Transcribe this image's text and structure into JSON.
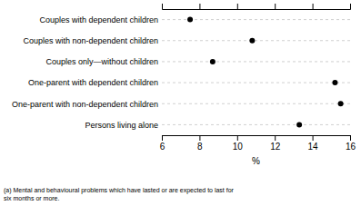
{
  "chart_data": {
    "type": "dot",
    "orientation": "horizontal",
    "categories": [
      "Couples with dependent children",
      "Couples with non-dependent children",
      "Couples only—without children",
      "One-parent with dependent children",
      "One-parent with non-dependent children",
      "Persons living alone"
    ],
    "values": [
      7.5,
      10.8,
      8.7,
      15.2,
      15.5,
      13.3
    ],
    "color": "#000000",
    "xlim": [
      6,
      16
    ],
    "xticks": [
      6,
      8,
      10,
      12,
      14,
      16
    ],
    "xlabel": "%",
    "grid": true,
    "annotation": "(a)  Mental and behavioural problems which have lasted or are expected to last for\nsix months or more."
  }
}
